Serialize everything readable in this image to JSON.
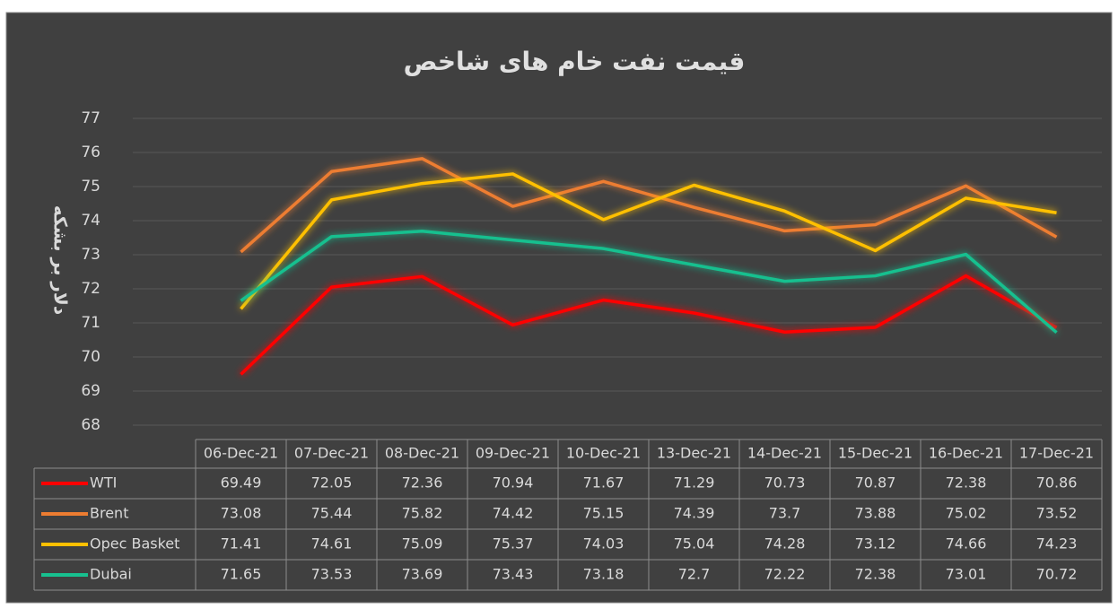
{
  "chart_data": {
    "type": "line",
    "title": "قیمت نفت خام های شاخص",
    "y_label": "دلار بر بشکه",
    "categories": [
      "06-Dec-21",
      "07-Dec-21",
      "08-Dec-21",
      "09-Dec-21",
      "10-Dec-21",
      "13-Dec-21",
      "14-Dec-21",
      "15-Dec-21",
      "16-Dec-21",
      "17-Dec-21"
    ],
    "series": [
      {
        "name": "WTI",
        "color": "#ff0000",
        "values": [
          69.49,
          72.05,
          72.36,
          70.94,
          71.67,
          71.29,
          70.73,
          70.87,
          72.38,
          70.86
        ]
      },
      {
        "name": "Brent",
        "color": "#ed7d31",
        "values": [
          73.08,
          75.44,
          75.82,
          74.42,
          75.15,
          74.39,
          73.7,
          73.88,
          75.02,
          73.52
        ]
      },
      {
        "name": "Opec Basket",
        "color": "#ffc000",
        "values": [
          71.41,
          74.61,
          75.09,
          75.37,
          74.03,
          75.04,
          74.28,
          73.12,
          74.66,
          74.23
        ]
      },
      {
        "name": "Dubai",
        "color": "#17c08f",
        "values": [
          71.65,
          73.53,
          73.69,
          73.43,
          73.18,
          72.7,
          72.22,
          72.38,
          73.01,
          70.72
        ]
      }
    ],
    "ylim": [
      68,
      77
    ],
    "yticks": [
      68,
      69,
      70,
      71,
      72,
      73,
      74,
      75,
      76,
      77
    ],
    "grid": true,
    "data_table": true
  }
}
